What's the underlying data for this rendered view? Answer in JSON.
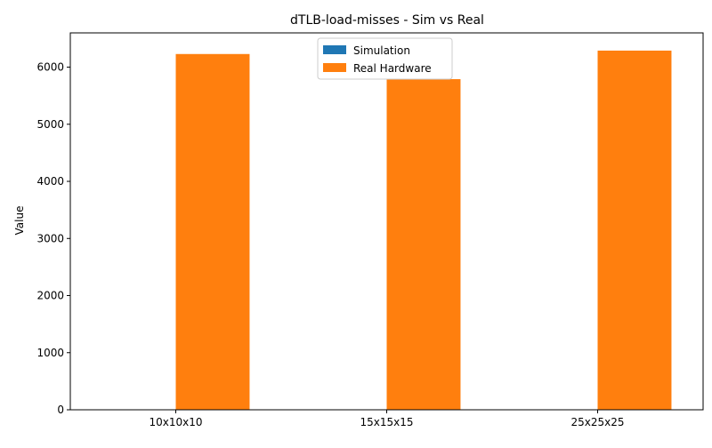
{
  "chart_data": {
    "type": "bar",
    "title": "dTLB-load-misses - Sim vs Real",
    "xlabel": "",
    "ylabel": "Value",
    "categories": [
      "10x10x10",
      "15x15x15",
      "25x25x25"
    ],
    "series": [
      {
        "name": "Simulation",
        "color": "#1f77b4",
        "values": [
          0,
          0,
          0
        ]
      },
      {
        "name": "Real Hardware",
        "color": "#ff7f0e",
        "values": [
          6230,
          5790,
          6290
        ]
      }
    ],
    "ylim": [
      0,
      6600
    ],
    "yticks": [
      0,
      1000,
      2000,
      3000,
      4000,
      5000,
      6000
    ],
    "grid": false,
    "legend_position": "top-center"
  }
}
